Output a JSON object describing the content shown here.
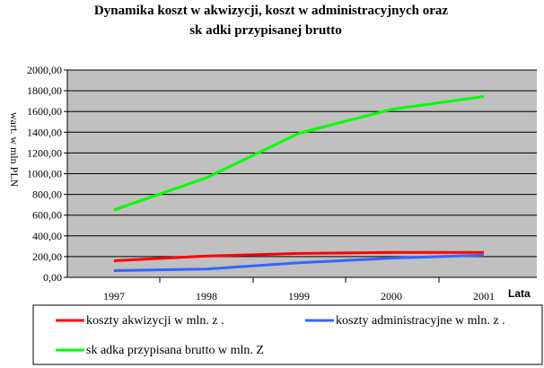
{
  "chart_data": {
    "type": "line",
    "title_lines": [
      "Dynamika koszt  w akwizycji, koszt  w administracyjnych oraz",
      "sk adki przypisanej brutto"
    ],
    "ylabel": "wart. w mln PLN",
    "xlabel": "Lata",
    "categories": [
      "1997",
      "1998",
      "1999",
      "2000",
      "2001"
    ],
    "ylim": [
      0,
      2000
    ],
    "yticks": [
      "0,00",
      "200,00",
      "400,00",
      "600,00",
      "800,00",
      "1000,00",
      "1200,00",
      "1400,00",
      "1600,00",
      "1800,00",
      "2000,00"
    ],
    "grid": true,
    "plot_background": "#c0c0c0",
    "legend_placement": "bottom",
    "series": [
      {
        "name": "koszty akwizycji w mln. z .",
        "color": "#ff0000",
        "values": [
          160,
          205,
          230,
          240,
          240
        ]
      },
      {
        "name": "koszty administracyjne w mln. z .",
        "color": "#3366ff",
        "values": [
          65,
          80,
          140,
          185,
          215
        ]
      },
      {
        "name": "sk adka przypisana brutto w mln. Z",
        "color": "#00ff00",
        "values": [
          650,
          960,
          1390,
          1620,
          1745
        ]
      }
    ]
  }
}
